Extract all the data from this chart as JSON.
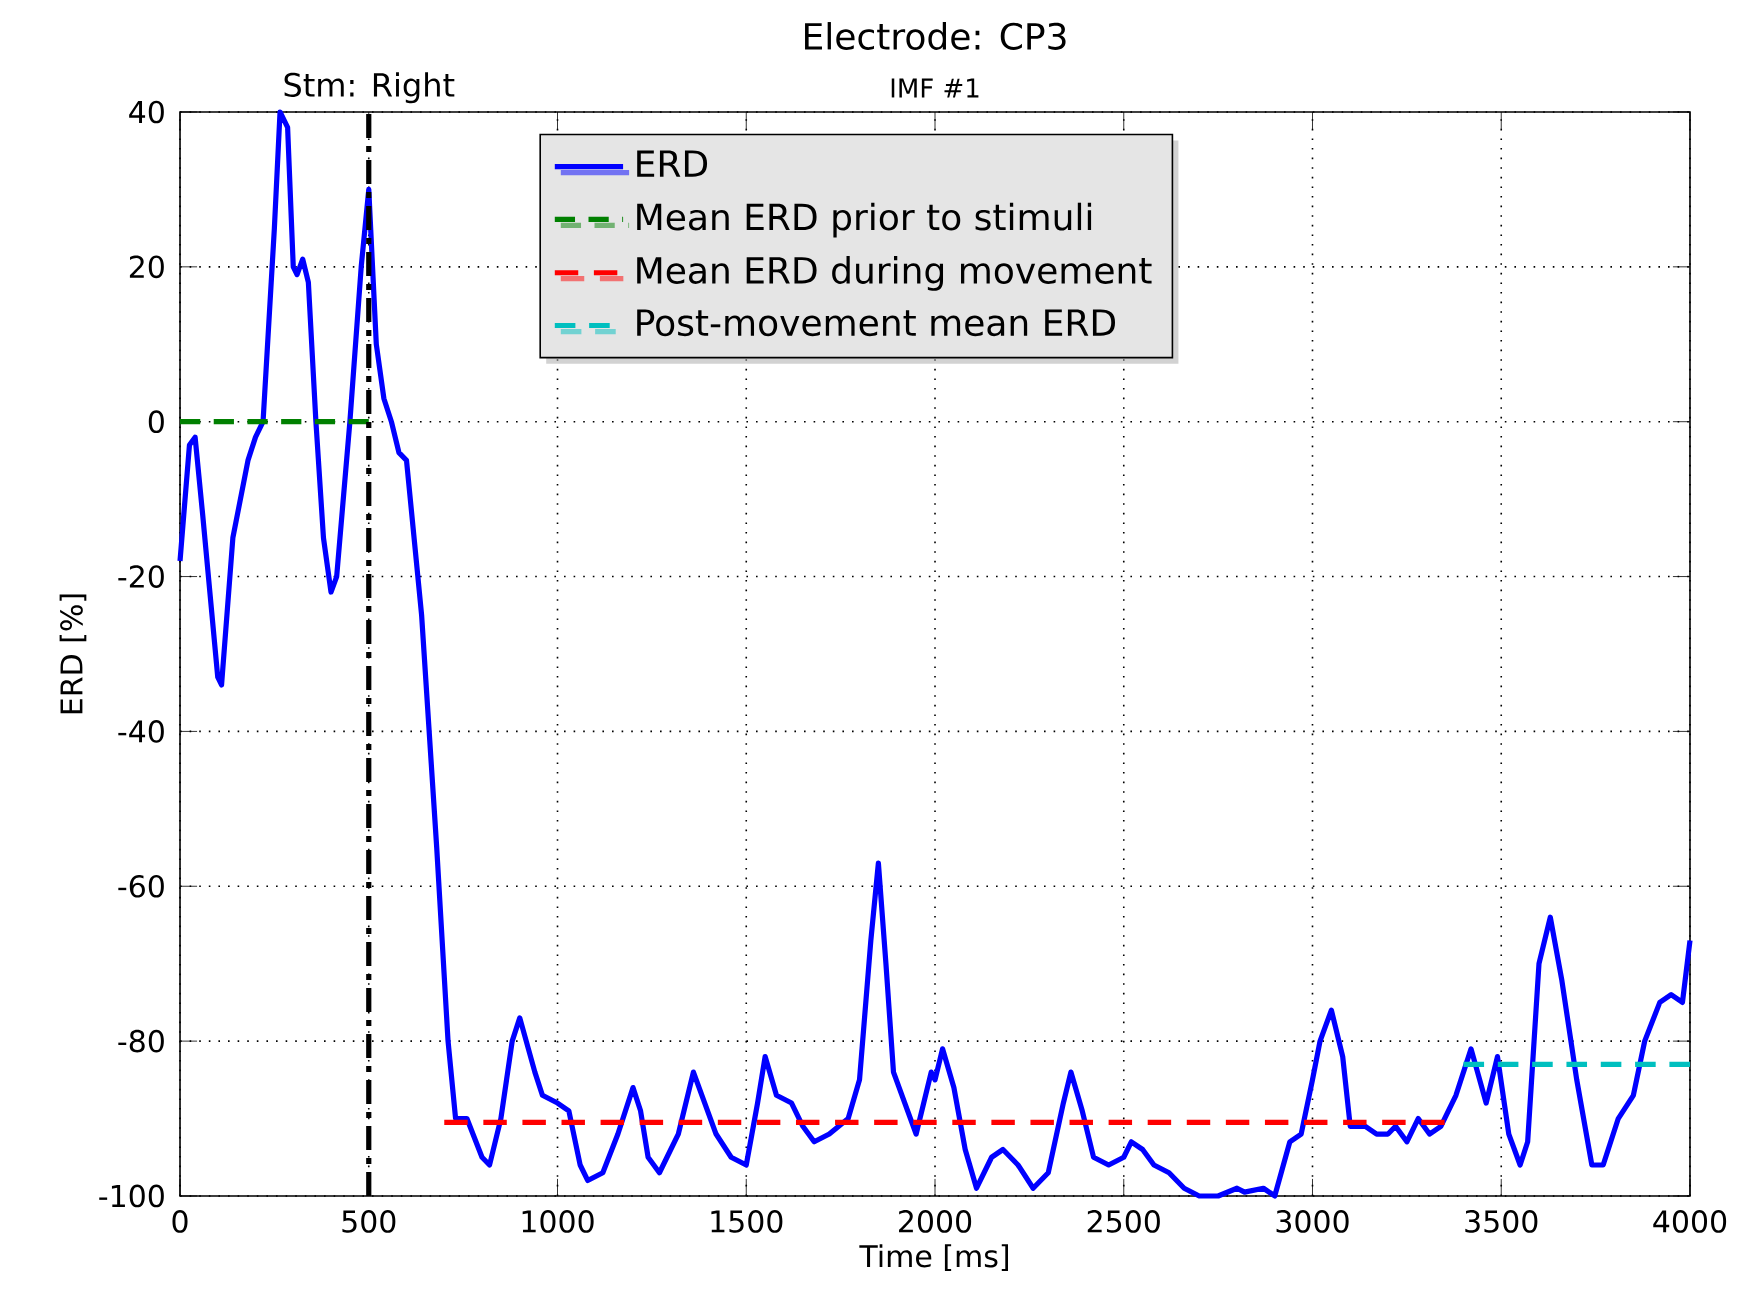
{
  "chart_data": {
    "type": "line",
    "title": "Electrode: CP3",
    "subtitle": "IMF #1",
    "xlabel": "Time [ms]",
    "ylabel": "ERD [%]",
    "xlim": [
      0,
      4000
    ],
    "ylim": [
      -100,
      40
    ],
    "xticks": [
      0,
      500,
      1000,
      1500,
      2000,
      2500,
      3000,
      3500,
      4000
    ],
    "yticks": [
      -100,
      -80,
      -60,
      -40,
      -20,
      0,
      20,
      40
    ],
    "grid": true,
    "legend": "top",
    "marker": "none",
    "ref_lines": [
      {
        "axis": "x",
        "value": 500,
        "label": "Stm: Right",
        "color": "#000000",
        "line_style": "dashdot"
      }
    ],
    "series": [
      {
        "name": "ERD",
        "color": "#0000ff",
        "line_style": "solid",
        "x": [
          0,
          25,
          40,
          60,
          100,
          110,
          140,
          180,
          200,
          220,
          250,
          265,
          285,
          300,
          310,
          325,
          340,
          360,
          380,
          400,
          415,
          450,
          480,
          500,
          520,
          540,
          560,
          580,
          600,
          640,
          680,
          710,
          730,
          760,
          800,
          820,
          850,
          880,
          900,
          940,
          960,
          1000,
          1030,
          1060,
          1080,
          1120,
          1160,
          1200,
          1220,
          1240,
          1270,
          1300,
          1320,
          1360,
          1390,
          1420,
          1460,
          1500,
          1530,
          1550,
          1580,
          1620,
          1650,
          1680,
          1720,
          1770,
          1800,
          1830,
          1850,
          1870,
          1890,
          1920,
          1950,
          1970,
          1990,
          2000,
          2020,
          2050,
          2080,
          2110,
          2150,
          2180,
          2220,
          2260,
          2300,
          2340,
          2360,
          2390,
          2420,
          2460,
          2500,
          2520,
          2550,
          2580,
          2620,
          2660,
          2700,
          2750,
          2800,
          2820,
          2870,
          2900,
          2940,
          2970,
          3000,
          3020,
          3050,
          3080,
          3100,
          3140,
          3170,
          3200,
          3220,
          3250,
          3280,
          3310,
          3340,
          3380,
          3420,
          3460,
          3490,
          3520,
          3550,
          3570,
          3600,
          3630,
          3660,
          3700,
          3740,
          3770,
          3810,
          3850,
          3880,
          3920,
          3950,
          3980,
          4000
        ],
        "values": [
          -18,
          -3,
          -2,
          -12,
          -33,
          -34,
          -15,
          -5,
          -2,
          0,
          25,
          40,
          38,
          20,
          19,
          21,
          18,
          0,
          -15,
          -22,
          -20,
          0,
          20,
          30,
          10,
          3,
          0,
          -4,
          -5,
          -25,
          -55,
          -80,
          -90,
          -90,
          -95,
          -96,
          -90,
          -80,
          -77,
          -84,
          -87,
          -88,
          -89,
          -96,
          -98,
          -97,
          -92,
          -86,
          -89,
          -95,
          -97,
          -94,
          -92,
          -84,
          -88,
          -92,
          -95,
          -96,
          -88,
          -82,
          -87,
          -88,
          -91,
          -93,
          -92,
          -90,
          -85,
          -67,
          -57,
          -70,
          -84,
          -88,
          -92,
          -88,
          -84,
          -85,
          -81,
          -86,
          -94,
          -99,
          -95,
          -94,
          -96,
          -99,
          -97,
          -88,
          -84,
          -89,
          -95,
          -96,
          -95,
          -93,
          -94,
          -96,
          -97,
          -99,
          -100,
          -100,
          -99,
          -99.5,
          -99,
          -100,
          -93,
          -92,
          -85,
          -80,
          -76,
          -82,
          -91,
          -91,
          -92,
          -92,
          -91,
          -93,
          -90,
          -92,
          -91,
          -87,
          -81,
          -88,
          -82,
          -92,
          -96,
          -93,
          -70,
          -64,
          -72,
          -85,
          -96,
          -96,
          -90,
          -87,
          -80,
          -75,
          -74,
          -75,
          -67
        ]
      },
      {
        "name": "Mean ERD prior to stimuli",
        "color": "#008000",
        "line_style": "dashed",
        "x": [
          0,
          500
        ],
        "values": [
          0,
          0
        ]
      },
      {
        "name": "Mean ERD during movement",
        "color": "#ff0000",
        "line_style": "dashed",
        "x": [
          700,
          3350
        ],
        "values": [
          -90.5,
          -90.5
        ]
      },
      {
        "name": "Post-movement mean ERD",
        "color": "#00bfbf",
        "line_style": "dashed",
        "x": [
          3400,
          4000
        ],
        "values": [
          -83,
          -83
        ]
      }
    ]
  }
}
